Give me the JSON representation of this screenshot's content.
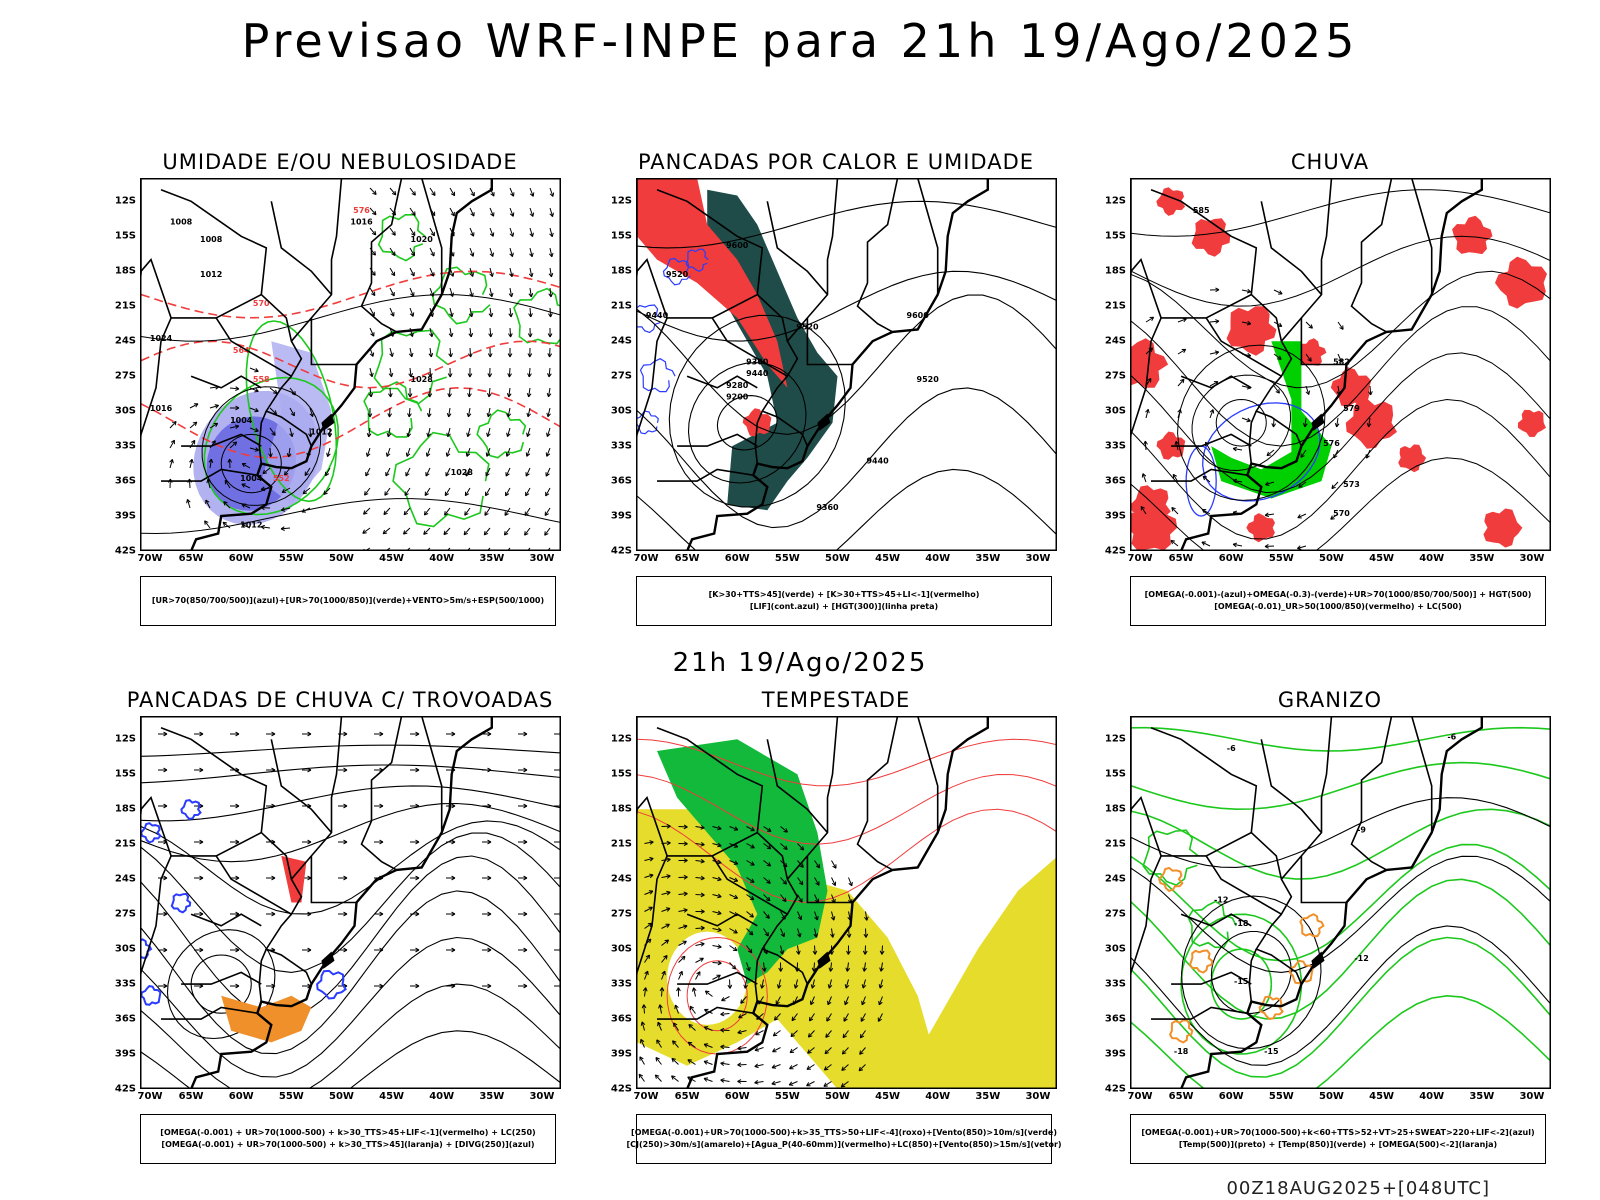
{
  "title": "Previsao WRF-INPE  para 21h 19/Ago/2025",
  "subtitle": "21h 19/Ago/2025",
  "footer": "00Z18AUG2025+[048UTC]",
  "axes": {
    "lat_labels": [
      "12S",
      "15S",
      "18S",
      "21S",
      "24S",
      "27S",
      "30S",
      "33S",
      "36S",
      "39S",
      "42S"
    ],
    "lon_labels": [
      "70W",
      "65W",
      "60W",
      "55W",
      "50W",
      "45W",
      "40W",
      "35W",
      "30W"
    ]
  },
  "colors": {
    "blue": "#2a3cff",
    "light_blue": "#aaaaf0",
    "green": "#1dc81d",
    "bright_green": "#00d000",
    "red": "#f03c3c",
    "dark_teal": "#1f4c49",
    "orange": "#f0902a",
    "yellow": "#e6dc2c",
    "black": "#000000"
  },
  "panels": [
    {
      "title": "UMIDADE E/OU NEBULOSIDADE",
      "legend": [
        "[UR>70(850/700/500)](azul)+[UR>70(1000/850)](verde)+VENTO>5m/s+ESP(500/1000)"
      ],
      "contour_labels": [
        "1008",
        "1008",
        "1012",
        "1016",
        "1020",
        "1024",
        "1028",
        "1004",
        "1012",
        "1016",
        "1004",
        "1012",
        "576",
        "570",
        "564",
        "558",
        "552"
      ]
    },
    {
      "title": "PANCADAS POR CALOR E UMIDADE",
      "legend": [
        "[K>30+TTS>45](verde) + [K>30+TTS>45+LI<-1](vermelho)",
        "[LIF](cont.azul) + [HGT(300)](linha preta)"
      ],
      "contour_labels": [
        "9600",
        "9520",
        "9440",
        "9360",
        "9280",
        "9200",
        "9600",
        "9520",
        "9440",
        "9360"
      ]
    },
    {
      "title": "CHUVA",
      "legend": [
        "[OMEGA(-0.001)-(azul)+OMEGA(-0.3)-(verde)+UR>70(1000/850/700/500)] + HGT(500)",
        "[OMEGA(-0.01)_UR>50(1000/850)(vermelho) + LC(500)"
      ],
      "contour_labels": [
        "585",
        "582",
        "579",
        "576",
        "573",
        "570"
      ]
    },
    {
      "title": "PANCADAS DE CHUVA C/ TROVOADAS",
      "legend": [
        "[OMEGA(-0.001) + UR>70(1000-500) + k>30_TTS>45+LIF<-1](vermelho) + LC(250)",
        "[OMEGA(-0.001) + UR>70(1000-500) + k>30_TTS>45](laranja) + [DIVG(250)](azul)"
      ],
      "contour_labels": []
    },
    {
      "title": "TEMPESTADE",
      "legend": [
        "[OMEGA(-0.001)+UR>70(1000-500)+k>35_TTS>50+LIF<-4](roxo)+[Vento(850)>10m/s](verde)",
        "[CJ(250)>30m/s](amarelo)+[Agua_P(40-60mm)](vermelho)+LC(850)+[Vento(850)>15m/s](vetor)"
      ],
      "contour_labels": []
    },
    {
      "title": "GRANIZO",
      "legend": [
        "[OMEGA(-0.001)+UR>70(1000-500)+k<60+TTS>52+VT>25+SWEAT>220+LIF<-2](azul)",
        "[Temp(500)](preto) + [Temp(850)](verde) + [OMEGA(500)<-2](laranja)"
      ],
      "contour_labels": [
        "-6",
        "-12",
        "-18",
        "-15",
        "-12",
        "-9",
        "-18",
        "-15",
        "-6"
      ]
    }
  ]
}
